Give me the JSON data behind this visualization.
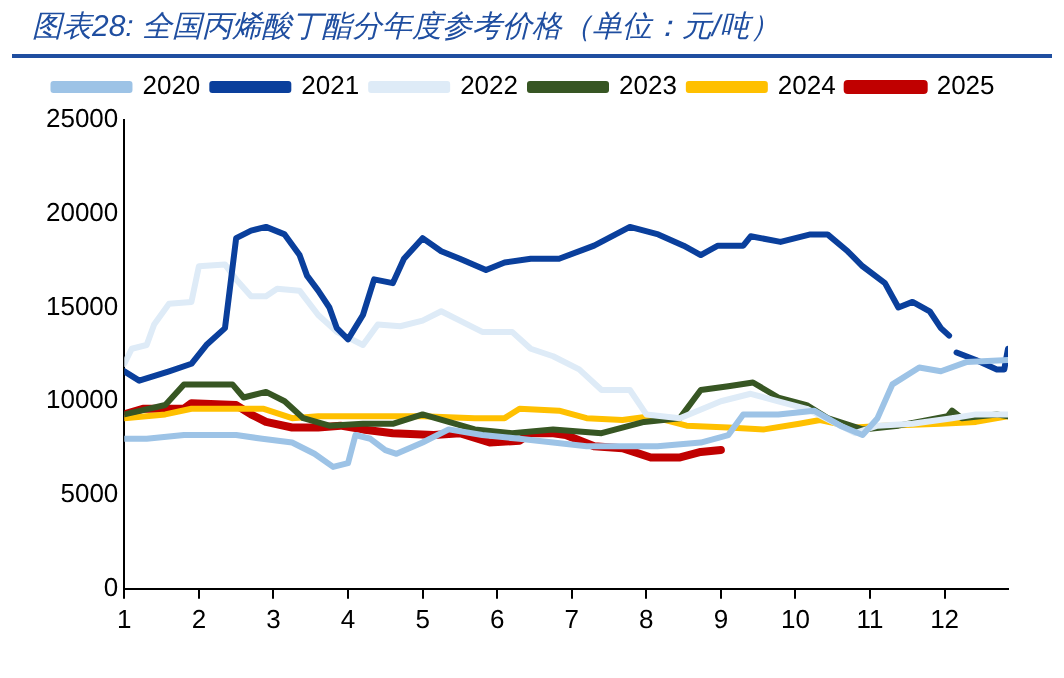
{
  "chart_data": {
    "type": "line",
    "title": "图表28:  全国丙烯酸丁酯分年度参考价格（单位：元/吨）",
    "xlim": [
      1,
      12.85
    ],
    "xticks": [
      1,
      2,
      3,
      4,
      5,
      6,
      7,
      8,
      9,
      10,
      11,
      12
    ],
    "ylim": [
      0,
      25000
    ],
    "yticks": [
      0,
      5000,
      10000,
      15000,
      20000,
      25000
    ],
    "grid": false,
    "legend": "top",
    "marker": "none",
    "line_style": "solid",
    "series": [
      {
        "name": "2020",
        "color": "#9dc3e6",
        "x": [
          1,
          1.3,
          1.8,
          2.5,
          2.85,
          3.25,
          3.55,
          3.8,
          4.0,
          4.1,
          4.3,
          4.5,
          4.65,
          5.0,
          5.35,
          5.8,
          6.3,
          6.75,
          7.2,
          8.15,
          8.73,
          9.1,
          9.3,
          9.77,
          10.25,
          10.6,
          10.9,
          11.1,
          11.3,
          11.66,
          11.95,
          12.3,
          12.85
        ],
        "values": [
          8000,
          8000,
          8200,
          8200,
          8000,
          7800,
          7200,
          6500,
          6700,
          8200,
          8000,
          7400,
          7200,
          7800,
          8500,
          8200,
          8000,
          7800,
          7600,
          7600,
          7800,
          8200,
          9300,
          9300,
          9500,
          8700,
          8200,
          9100,
          10900,
          11800,
          11600,
          12100,
          12200
        ]
      },
      {
        "name": "2021",
        "color": "#0a3f9c",
        "x": [
          1,
          1.2,
          1.6,
          1.9,
          2.1,
          2.35,
          2.5,
          2.7,
          2.9,
          3.15,
          3.35,
          3.45,
          3.6,
          3.75,
          3.85,
          4.0,
          4.2,
          4.35,
          4.6,
          4.75,
          5.0,
          5.25,
          5.5,
          5.85,
          6.1,
          6.45,
          6.83,
          7.3,
          7.78,
          8.16,
          8.5,
          8.73,
          8.96,
          9.3,
          9.4,
          9.8,
          10.2,
          10.43,
          10.7,
          10.9,
          11.2,
          11.38,
          11.57,
          11.8,
          11.95,
          12.06,
          12.11,
          12.16,
          12.42,
          12.7,
          12.8,
          12.85
        ],
        "values": [
          11600,
          11100,
          11600,
          12000,
          13000,
          13900,
          18700,
          19100,
          19300,
          18900,
          17800,
          16700,
          15900,
          15000,
          13900,
          13300,
          14600,
          16500,
          16300,
          17600,
          18700,
          18000,
          17600,
          17000,
          17400,
          17600,
          17600,
          18300,
          19300,
          18900,
          18300,
          17800,
          18300,
          18300,
          18800,
          18500,
          18900,
          18900,
          18000,
          17200,
          16300,
          15000,
          15300,
          14800,
          13900,
          13500,
          null,
          12600,
          12200,
          11700,
          11700,
          12800
        ]
      },
      {
        "name": "2022",
        "color": "#deebf7",
        "x": [
          1,
          1.1,
          1.3,
          1.4,
          1.6,
          1.9,
          2.0,
          2.35,
          2.5,
          2.7,
          2.9,
          3.05,
          3.35,
          3.6,
          3.85,
          4.2,
          4.4,
          4.7,
          5.0,
          5.25,
          5.5,
          5.8,
          6.2,
          6.45,
          6.75,
          7.1,
          7.4,
          7.78,
          8.0,
          8.45,
          9.0,
          9.4,
          9.77,
          10.15,
          10.5,
          10.8,
          11.1,
          11.57,
          12.1,
          12.42,
          12.85
        ],
        "values": [
          12000,
          12800,
          13000,
          14100,
          15200,
          15300,
          17200,
          17300,
          16500,
          15600,
          15600,
          16000,
          15900,
          14600,
          13700,
          13000,
          14100,
          14000,
          14300,
          14800,
          14300,
          13700,
          13700,
          12800,
          12400,
          11700,
          10600,
          10600,
          9300,
          9100,
          10000,
          10400,
          10000,
          9600,
          8900,
          8300,
          8700,
          8800,
          9100,
          9300,
          9300
        ]
      },
      {
        "name": "2023",
        "color": "#375623",
        "x": [
          1,
          1.55,
          1.8,
          2.45,
          2.6,
          2.9,
          3.15,
          3.4,
          3.75,
          4.2,
          4.6,
          5.0,
          5.35,
          5.7,
          6.2,
          6.75,
          7.4,
          7.97,
          8.45,
          8.73,
          9.1,
          9.43,
          9.77,
          10.15,
          10.43,
          10.9,
          11.38,
          12.04,
          12.1,
          12.23,
          12.7,
          12.85
        ],
        "values": [
          9300,
          9800,
          10900,
          10900,
          10200,
          10500,
          10000,
          9100,
          8700,
          8800,
          8800,
          9300,
          8900,
          8500,
          8300,
          8500,
          8300,
          8900,
          9100,
          10600,
          10800,
          11000,
          10200,
          9800,
          9100,
          8500,
          8700,
          9200,
          9500,
          9100,
          9300,
          9200
        ]
      },
      {
        "name": "2024",
        "color": "#ffc000",
        "x": [
          1,
          1.55,
          1.9,
          2.5,
          2.87,
          3.25,
          3.6,
          4.4,
          5.0,
          5.7,
          6.1,
          6.3,
          6.83,
          7.2,
          7.68,
          8.06,
          8.54,
          9.1,
          9.58,
          10.05,
          10.33,
          10.8,
          11.19,
          11.95,
          12.42,
          12.85
        ],
        "values": [
          9100,
          9300,
          9600,
          9600,
          9600,
          9100,
          9200,
          9200,
          9200,
          9100,
          9100,
          9600,
          9500,
          9100,
          9000,
          9200,
          8700,
          8600,
          8500,
          8800,
          9000,
          8600,
          8700,
          8800,
          8900,
          9200
        ]
      },
      {
        "name": "2025",
        "color": "#c00000",
        "x": [
          1,
          1.25,
          1.8,
          1.9,
          2.5,
          2.7,
          2.9,
          3.25,
          3.6,
          3.9,
          4.2,
          4.6,
          5.15,
          5.5,
          5.9,
          6.3,
          6.45,
          6.73,
          6.92,
          7.3,
          7.68,
          8.06,
          8.44,
          8.73,
          9.0
        ],
        "values": [
          9300,
          9600,
          9600,
          9900,
          9800,
          9300,
          8900,
          8600,
          8600,
          8700,
          8500,
          8300,
          8200,
          8300,
          7800,
          7900,
          8300,
          8300,
          8200,
          7600,
          7500,
          7000,
          7000,
          7300,
          7400
        ]
      }
    ]
  }
}
